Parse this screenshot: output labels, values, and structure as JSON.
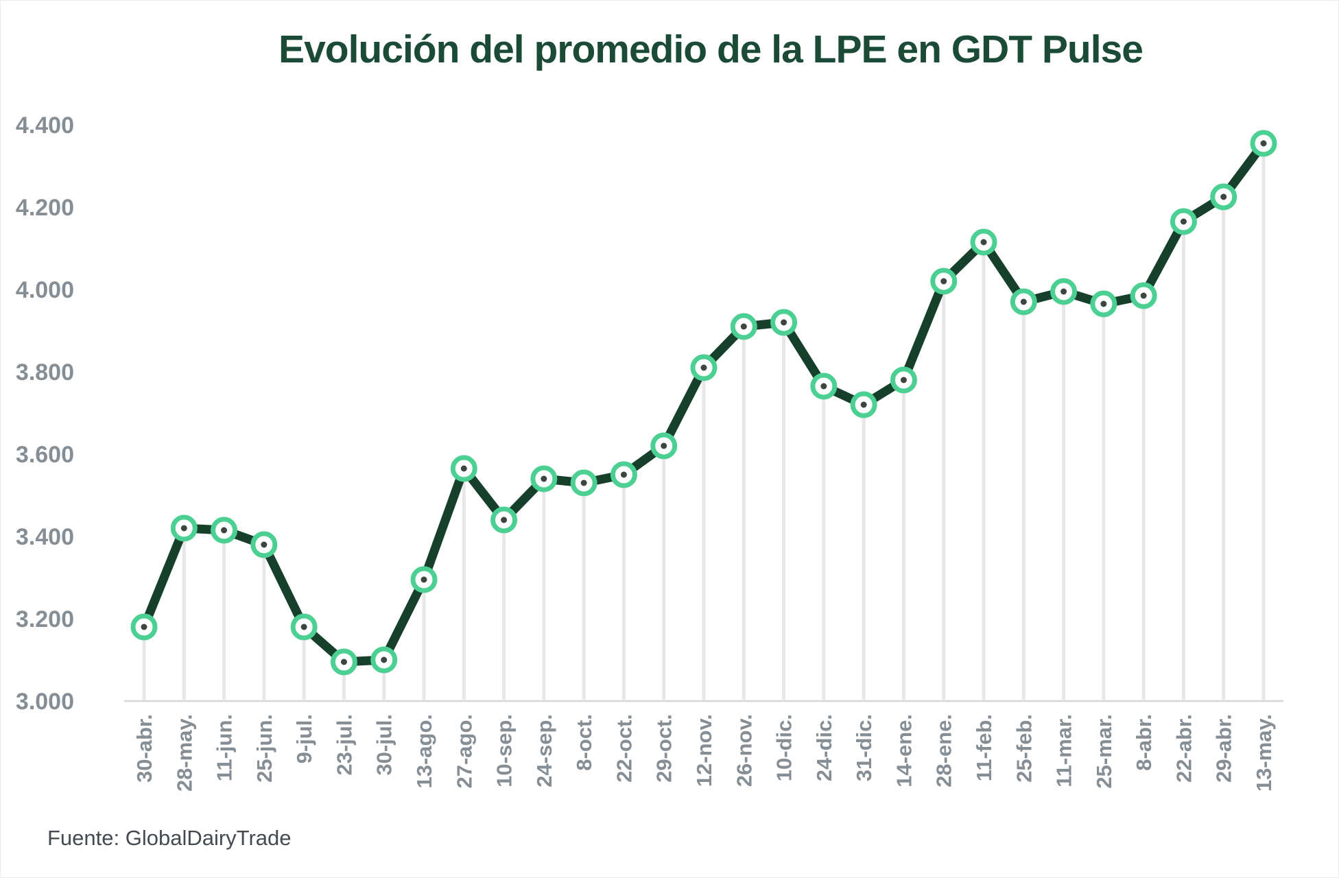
{
  "chart_data": {
    "type": "line",
    "title": "Evolución del promedio de la LPE en GDT Pulse",
    "categories": [
      "30-abr.",
      "28-may.",
      "11-jun.",
      "25-jun.",
      "9-jul.",
      "23-jul.",
      "30-jul.",
      "13-ago.",
      "27-ago.",
      "10-sep.",
      "24-sep.",
      "8-oct.",
      "22-oct.",
      "29-oct.",
      "12-nov.",
      "26-nov.",
      "10-dic.",
      "24-dic.",
      "31-dic.",
      "14-ene.",
      "28-ene.",
      "11-feb.",
      "25-feb.",
      "11-mar.",
      "25-mar.",
      "8-abr.",
      "22-abr.",
      "29-abr.",
      "13-may."
    ],
    "values": [
      3180,
      3420,
      3415,
      3380,
      3180,
      3095,
      3100,
      3295,
      3565,
      3440,
      3540,
      3530,
      3550,
      3620,
      3810,
      3910,
      3920,
      3765,
      3720,
      3780,
      4020,
      4115,
      3970,
      3995,
      3965,
      3985,
      4165,
      4225,
      4355
    ],
    "xlabel": "",
    "ylabel": "",
    "ylim": [
      3000,
      4400
    ],
    "y_tick_step": 200,
    "y_tick_labels": [
      "3.000",
      "3.200",
      "3.400",
      "3.600",
      "3.800",
      "4.000",
      "4.200",
      "4.400"
    ],
    "grid": "vertical drop lines from each point, no horizontal gridlines",
    "legend": "none",
    "marker": "ring"
  },
  "footer": {
    "source_label": "Fuente: GlobalDairyTrade"
  },
  "colors": {
    "title_green": "#1b4b36",
    "line_green": "#16402c",
    "marker_ring_green": "#4ccf92",
    "marker_center_dot": "#3c463f",
    "axis_label_gray": "#858d95",
    "drop_line_gray": "#e7e7e7",
    "axis_line_gray": "#d6d6d6",
    "source_gray": "#444a50"
  }
}
